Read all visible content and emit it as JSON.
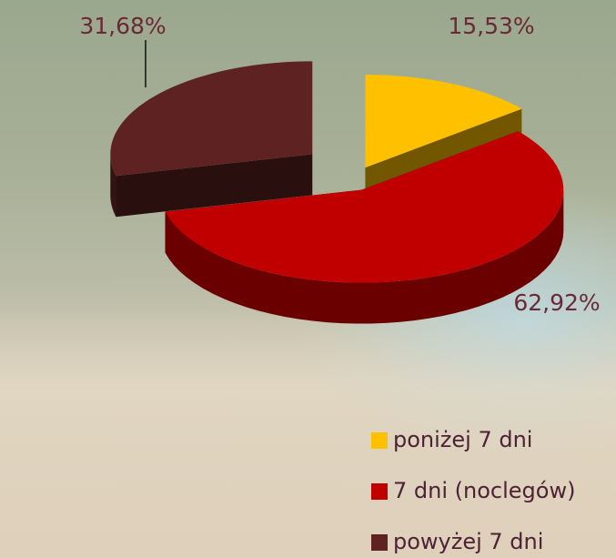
{
  "chart_data": {
    "type": "pie3d",
    "categories": [
      "poniżej 7 dni",
      "7 dni (noclegów)",
      "powyżej 7 dni"
    ],
    "values": [
      15.53,
      62.92,
      31.68
    ],
    "value_labels": [
      "15,53%",
      "62,92%",
      "31,68%"
    ],
    "colors": [
      "#ffc000",
      "#c00000",
      "#5e2222"
    ],
    "legend": "bottom-left"
  }
}
